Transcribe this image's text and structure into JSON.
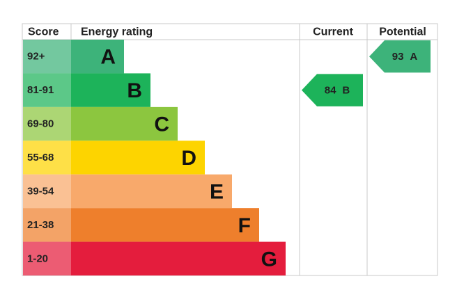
{
  "header": {
    "score": "Score",
    "energy_rating": "Energy rating",
    "current": "Current",
    "potential": "Potential"
  },
  "bands": [
    {
      "score": "92+",
      "letter": "A",
      "color": "#3db37a"
    },
    {
      "score": "81-91",
      "letter": "B",
      "color": "#1db35a"
    },
    {
      "score": "69-80",
      "letter": "C",
      "color": "#8cc63f"
    },
    {
      "score": "55-68",
      "letter": "D",
      "color": "#fdd400"
    },
    {
      "score": "39-54",
      "letter": "E",
      "color": "#f8a96b"
    },
    {
      "score": "21-38",
      "letter": "F",
      "color": "#ee7f2c"
    },
    {
      "score": "1-20",
      "letter": "G",
      "color": "#e41d3d"
    }
  ],
  "current": {
    "value": 84,
    "letter": "B"
  },
  "potential": {
    "value": 93,
    "letter": "A"
  }
}
